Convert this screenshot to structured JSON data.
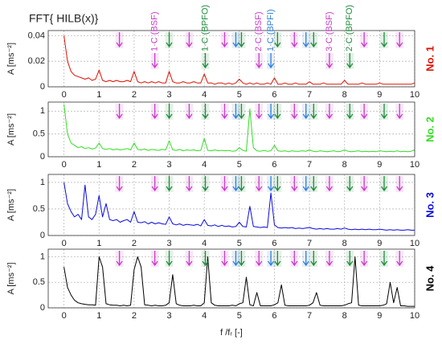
{
  "chart_data": {
    "type": "line",
    "title": "FFT{ HILB(x)}",
    "xlabel": "f /fᵣ [-]",
    "x": [
      0,
      0.1,
      0.2,
      0.3,
      0.4,
      0.5,
      0.6,
      0.7,
      0.8,
      0.9,
      1,
      1.1,
      1.2,
      1.3,
      1.4,
      1.5,
      1.6,
      1.7,
      1.8,
      1.9,
      2,
      2.1,
      2.2,
      2.3,
      2.4,
      2.5,
      2.6,
      2.7,
      2.8,
      2.9,
      3,
      3.1,
      3.2,
      3.3,
      3.4,
      3.5,
      3.6,
      3.7,
      3.8,
      3.9,
      4,
      4.1,
      4.2,
      4.3,
      4.4,
      4.5,
      4.6,
      4.7,
      4.8,
      4.9,
      5,
      5.1,
      5.2,
      5.3,
      5.4,
      5.5,
      5.6,
      5.7,
      5.8,
      5.9,
      6,
      6.1,
      6.2,
      6.3,
      6.4,
      6.5,
      6.6,
      6.7,
      6.8,
      6.9,
      7,
      7.1,
      7.2,
      7.3,
      7.4,
      7.5,
      7.6,
      7.7,
      7.8,
      7.9,
      8,
      8.1,
      8.2,
      8.3,
      8.4,
      8.5,
      8.6,
      8.7,
      8.8,
      8.9,
      9,
      9.1,
      9.2,
      9.3,
      9.4,
      9.5,
      9.6,
      9.7,
      9.8,
      9.9,
      10
    ],
    "xlim": [
      -0.45,
      10
    ],
    "xticks": [
      0,
      1,
      2,
      3,
      4,
      5,
      6,
      7,
      8,
      9,
      10
    ],
    "grid": true,
    "markers": [
      {
        "color": "#c83cc8",
        "x": [
          1.58,
          2.59,
          3.57,
          4.58,
          5.56,
          6.57,
          7.57,
          8.56,
          9.57
        ]
      },
      {
        "color": "#1e8c3c",
        "x": [
          3.0,
          4.03,
          5.06,
          6.09,
          7.12,
          8.15,
          9.13
        ]
      },
      {
        "color": "#2f7fd8",
        "x": [
          4.9,
          5.9,
          6.9
        ]
      }
    ],
    "annotations": [
      {
        "text": "1·C (BSF)",
        "x": 2.59,
        "color": "#c83cc8"
      },
      {
        "text": "1·C (BPFO)",
        "x": 4.03,
        "color": "#1e8c3c"
      },
      {
        "text": "2·C (BSF)",
        "x": 5.56,
        "color": "#c83cc8"
      },
      {
        "text": "1·C (BPFI)",
        "x": 5.9,
        "color": "#2f7fd8"
      },
      {
        "text": "3·C (BSF)",
        "x": 7.57,
        "color": "#c83cc8"
      },
      {
        "text": "2·C (BPFO)",
        "x": 8.15,
        "color": "#1e8c3c"
      }
    ],
    "panels": [
      {
        "label": "No. 1",
        "ylabel": "A [ms⁻²]",
        "color": "#dd1100",
        "ylim": [
          0,
          0.044
        ],
        "yticks": [
          0,
          0.02,
          0.04
        ],
        "values": [
          0.04,
          0.02,
          0.012,
          0.009,
          0.008,
          0.007,
          0.006,
          0.007,
          0.005,
          0.006,
          0.013,
          0.005,
          0.004,
          0.005,
          0.004,
          0.005,
          0.004,
          0.004,
          0.005,
          0.004,
          0.012,
          0.004,
          0.003,
          0.004,
          0.003,
          0.004,
          0.003,
          0.004,
          0.003,
          0.003,
          0.012,
          0.004,
          0.003,
          0.003,
          0.004,
          0.003,
          0.003,
          0.004,
          0.003,
          0.003,
          0.01,
          0.003,
          0.003,
          0.002,
          0.003,
          0.003,
          0.002,
          0.003,
          0.002,
          0.003,
          0.006,
          0.003,
          0.002,
          0.003,
          0.002,
          0.003,
          0.002,
          0.002,
          0.003,
          0.002,
          0.007,
          0.002,
          0.002,
          0.003,
          0.002,
          0.002,
          0.003,
          0.002,
          0.002,
          0.002,
          0.004,
          0.002,
          0.002,
          0.002,
          0.003,
          0.002,
          0.002,
          0.002,
          0.002,
          0.002,
          0.005,
          0.002,
          0.002,
          0.002,
          0.002,
          0.003,
          0.002,
          0.002,
          0.002,
          0.002,
          0.003,
          0.002,
          0.002,
          0.002,
          0.002,
          0.002,
          0.002,
          0.002,
          0.002,
          0.002,
          0.003
        ]
      },
      {
        "label": "No. 2",
        "ylabel": "A [ms⁻²]",
        "color": "#33dd22",
        "ylim": [
          0,
          1.2
        ],
        "yticks": [
          0,
          0.5,
          1
        ],
        "values": [
          1.15,
          0.5,
          0.3,
          0.25,
          0.2,
          0.22,
          0.18,
          0.2,
          0.17,
          0.19,
          0.3,
          0.18,
          0.16,
          0.18,
          0.15,
          0.17,
          0.15,
          0.16,
          0.18,
          0.15,
          0.3,
          0.16,
          0.15,
          0.17,
          0.14,
          0.16,
          0.15,
          0.14,
          0.16,
          0.15,
          0.35,
          0.15,
          0.14,
          0.16,
          0.13,
          0.15,
          0.14,
          0.15,
          0.13,
          0.14,
          0.4,
          0.14,
          0.13,
          0.15,
          0.13,
          0.14,
          0.13,
          0.14,
          0.12,
          0.13,
          0.2,
          0.14,
          0.12,
          1.05,
          0.2,
          0.13,
          0.12,
          0.14,
          0.12,
          0.13,
          0.25,
          0.13,
          0.12,
          0.13,
          0.11,
          0.13,
          0.12,
          0.12,
          0.13,
          0.12,
          0.15,
          0.12,
          0.11,
          0.13,
          0.12,
          0.11,
          0.12,
          0.13,
          0.11,
          0.12,
          0.15,
          0.12,
          0.11,
          0.12,
          0.13,
          0.11,
          0.12,
          0.11,
          0.12,
          0.11,
          0.13,
          0.12,
          0.11,
          0.12,
          0.11,
          0.13,
          0.11,
          0.12,
          0.11,
          0.12,
          0.15
        ]
      },
      {
        "label": "No. 3",
        "ylabel": "A [ms⁻²]",
        "color": "#0a0ae0",
        "ylim": [
          0,
          1.15
        ],
        "yticks": [
          0,
          0.5,
          1
        ],
        "values": [
          1.0,
          0.6,
          0.45,
          0.35,
          0.4,
          0.3,
          0.95,
          0.35,
          0.3,
          0.4,
          0.75,
          0.35,
          0.6,
          0.3,
          0.28,
          0.3,
          0.25,
          0.28,
          0.3,
          0.25,
          0.45,
          0.25,
          0.24,
          0.26,
          0.22,
          0.25,
          0.22,
          0.24,
          0.22,
          0.21,
          0.35,
          0.22,
          0.2,
          0.22,
          0.19,
          0.21,
          0.2,
          0.19,
          0.21,
          0.18,
          0.3,
          0.19,
          0.18,
          0.2,
          0.17,
          0.19,
          0.17,
          0.18,
          0.16,
          0.17,
          0.25,
          0.17,
          0.16,
          0.55,
          0.17,
          0.16,
          0.15,
          0.16,
          0.15,
          0.8,
          0.2,
          0.15,
          0.14,
          0.15,
          0.14,
          0.15,
          0.13,
          0.14,
          0.13,
          0.14,
          0.15,
          0.13,
          0.12,
          0.13,
          0.12,
          0.13,
          0.12,
          0.12,
          0.13,
          0.12,
          0.14,
          0.12,
          0.11,
          0.12,
          0.11,
          0.12,
          0.11,
          0.12,
          0.11,
          0.11,
          0.12,
          0.11,
          0.1,
          0.11,
          0.1,
          0.11,
          0.1,
          0.1,
          0.11,
          0.1,
          0.1
        ]
      },
      {
        "label": "No. 4",
        "ylabel": "A [ms⁻²]",
        "color": "#000000",
        "ylim": [
          0,
          1.15
        ],
        "yticks": [
          0,
          0.5,
          1
        ],
        "values": [
          0.8,
          0.4,
          0.25,
          0.15,
          0.1,
          0.08,
          0.07,
          0.06,
          0.06,
          0.05,
          1.0,
          0.8,
          0.08,
          0.06,
          0.05,
          0.05,
          0.04,
          0.05,
          0.04,
          0.05,
          0.75,
          1.0,
          0.8,
          0.06,
          0.05,
          0.04,
          0.05,
          0.04,
          0.04,
          0.05,
          0.1,
          0.65,
          0.08,
          0.05,
          0.04,
          0.04,
          0.04,
          0.05,
          0.04,
          0.04,
          0.1,
          1.0,
          0.1,
          0.05,
          0.04,
          0.04,
          0.04,
          0.04,
          0.05,
          0.04,
          0.08,
          0.1,
          0.6,
          0.06,
          0.04,
          0.3,
          0.04,
          0.04,
          0.04,
          0.04,
          0.06,
          0.1,
          0.45,
          0.05,
          0.04,
          0.04,
          0.04,
          0.04,
          0.04,
          0.04,
          0.05,
          0.1,
          0.3,
          0.05,
          0.04,
          0.04,
          0.04,
          0.04,
          0.04,
          0.04,
          0.05,
          0.08,
          0.1,
          1.0,
          0.05,
          0.04,
          0.04,
          0.04,
          0.04,
          0.04,
          0.04,
          0.05,
          0.08,
          0.5,
          0.1,
          0.4,
          0.04,
          0.04,
          0.03,
          0.03,
          0.03
        ]
      }
    ]
  }
}
